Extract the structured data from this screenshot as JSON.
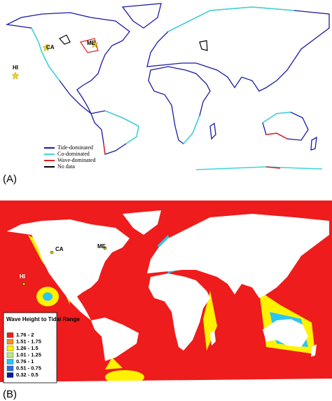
{
  "panel_a": {
    "label": "(A)",
    "legend": [
      {
        "label": "Tide-dominated",
        "color": "#1a1aa6"
      },
      {
        "label": "Co-dominated",
        "color": "#3fd6d6"
      },
      {
        "label": "Wave-dominated",
        "color": "#e02020"
      },
      {
        "label": "No data",
        "color": "#000000"
      }
    ],
    "sites": [
      {
        "label": "HI"
      },
      {
        "label": "CA"
      },
      {
        "label": "ME"
      }
    ]
  },
  "panel_b": {
    "label": "(B)",
    "legend_title": "Wave Height to Tidal Range",
    "legend": [
      {
        "label": "1.76 - 2",
        "color": "#ee1c1c"
      },
      {
        "label": "1.51 - 1.75",
        "color": "#f7941d"
      },
      {
        "label": "1.26 - 1.5",
        "color": "#fff200"
      },
      {
        "label": "1.01 - 1.25",
        "color": "#b8e986"
      },
      {
        "label": "0.76 - 1",
        "color": "#29c5f6"
      },
      {
        "label": "0.51 - 0.75",
        "color": "#2a6fdb"
      },
      {
        "label": "0.32 - 0.5",
        "color": "#0a1a9e"
      }
    ],
    "sites": [
      {
        "label": "HI"
      },
      {
        "label": "CA"
      },
      {
        "label": "ME"
      }
    ]
  }
}
